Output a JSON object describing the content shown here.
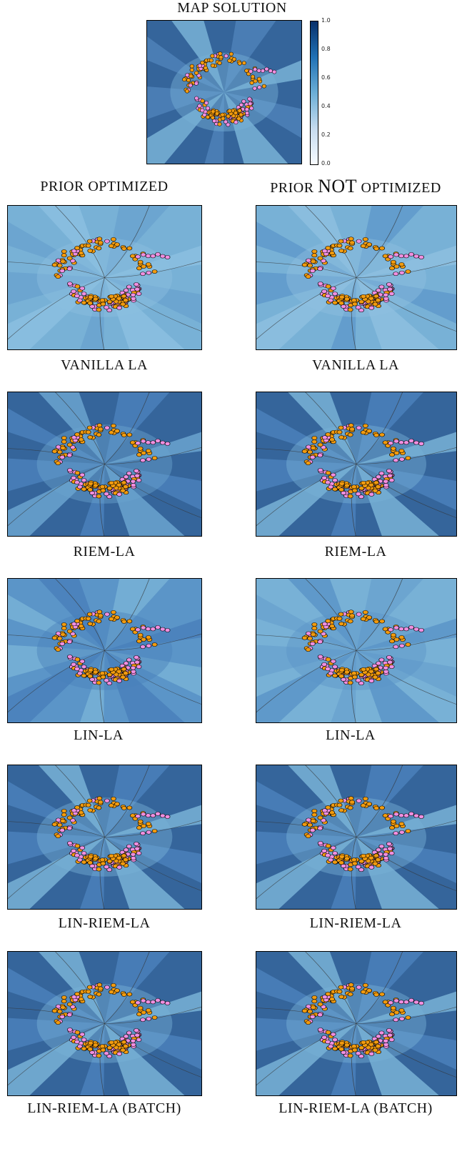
{
  "page": {
    "title": "MAP SOLUTION",
    "col_left": "PRIOR OPTIMIZED",
    "col_right_a": "PRIOR ",
    "col_right_b": "NOT",
    "col_right_c": " OPTIMIZED"
  },
  "colorbar": {
    "ticks": [
      "1.0",
      "0.8",
      "0.6",
      "0.4",
      "0.2",
      "0.0"
    ]
  },
  "captions": {
    "row1": "VANILLA LA",
    "row2": "RIEM-LA",
    "row3": "LIN-LA",
    "row4": "LIN-RIEM-LA",
    "row5": "LIN-RIEM-LA (BATCH)"
  },
  "colors": {
    "orange": "#f29b0e",
    "pink": "#f08fe0",
    "dark_blue": "#35659b",
    "light_blue": "#78b1d6"
  },
  "chart_data": {
    "type": "scatter",
    "title": "MAP SOLUTION",
    "series": [],
    "panels": [
      "MAP SOLUTION",
      "PRIOR OPTIMIZED / VANILLA LA",
      "PRIOR NOT OPTIMIZED / VANILLA LA",
      "PRIOR OPTIMIZED / RIEM-LA",
      "PRIOR NOT OPTIMIZED / RIEM-LA",
      "PRIOR OPTIMIZED / LIN-LA",
      "PRIOR NOT OPTIMIZED / LIN-LA",
      "PRIOR OPTIMIZED / LIN-RIEM-LA",
      "PRIOR NOT OPTIMIZED / LIN-RIEM-LA",
      "PRIOR OPTIMIZED / LIN-RIEM-LA (BATCH)",
      "PRIOR NOT OPTIMIZED / LIN-RIEM-LA (BATCH)"
    ],
    "colorbar_range": [
      0.0,
      1.0
    ],
    "colormap": "Blues"
  }
}
